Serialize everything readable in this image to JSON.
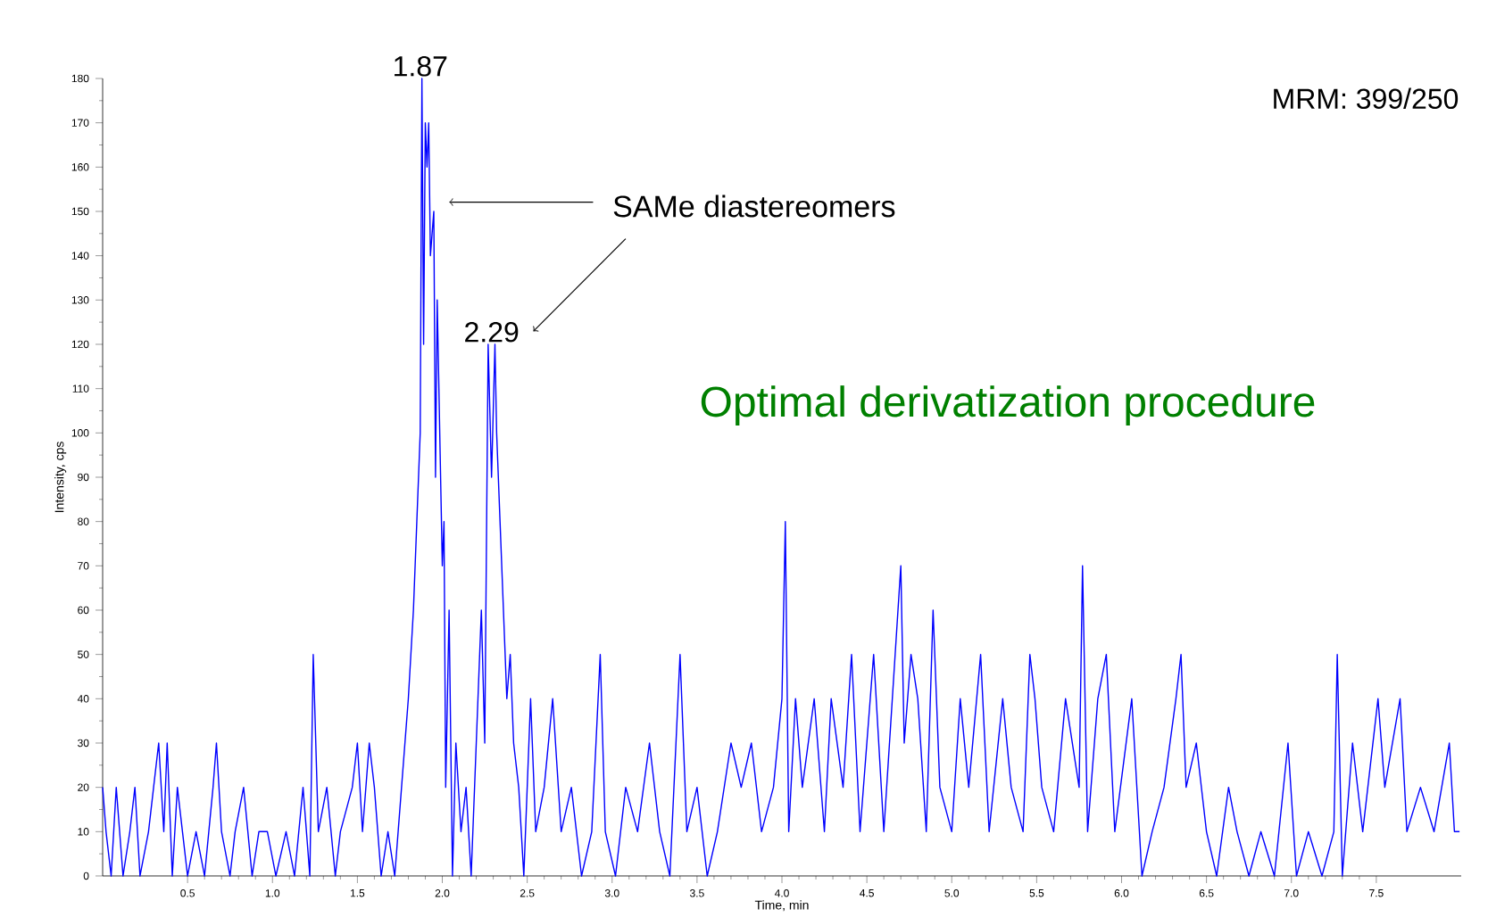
{
  "chart_data": {
    "type": "line",
    "xlabel": "Time, min",
    "ylabel": "Intensity, cps",
    "annotations": [
      {
        "text": "1.87",
        "x": 1.87,
        "y": 180
      },
      {
        "text": "2.29",
        "x": 2.29,
        "y": 120
      },
      "SAMe diastereomers",
      "MRM: 399/250",
      "Optimal derivatization procedure"
    ],
    "xlim": [
      0,
      8.0
    ],
    "ylim": [
      0,
      180
    ],
    "xticks": [
      0.5,
      {
        "value": 1,
        "label": "1.0"
      },
      1.5,
      {
        "value": 2,
        "label": "2.0"
      },
      2.5,
      {
        "value": 3,
        "label": "3.0"
      },
      3.5,
      {
        "value": 4,
        "label": "4.0"
      },
      4.5,
      {
        "value": 5,
        "label": "5.0"
      },
      5.5,
      {
        "value": 6,
        "label": "6.0"
      },
      6.5,
      {
        "value": 7,
        "label": "7.0"
      },
      7.5
    ],
    "yticks": [
      0,
      10,
      20,
      30,
      40,
      50,
      60,
      70,
      80,
      90,
      100,
      110,
      120,
      130,
      140,
      150,
      160,
      170,
      180
    ],
    "grid": false,
    "marker": "none",
    "line_style": "solid",
    "series": [
      {
        "color": "#0000ff",
        "x": [
          0.0,
          0.02,
          0.05,
          0.08,
          0.12,
          0.16,
          0.19,
          0.22,
          0.27,
          0.3,
          0.33,
          0.36,
          0.38,
          0.41,
          0.44,
          0.47,
          0.5,
          0.55,
          0.6,
          0.65,
          0.67,
          0.7,
          0.75,
          0.78,
          0.83,
          0.88,
          0.92,
          0.97,
          1.02,
          1.08,
          1.13,
          1.18,
          1.22,
          1.24,
          1.27,
          1.32,
          1.37,
          1.4,
          1.47,
          1.5,
          1.53,
          1.57,
          1.6,
          1.64,
          1.68,
          1.72,
          1.76,
          1.8,
          1.83,
          1.85,
          1.87,
          1.88,
          1.89,
          1.9,
          1.91,
          1.92,
          1.93,
          1.95,
          1.96,
          1.97,
          1.98,
          2.0,
          2.01,
          2.02,
          2.04,
          2.06,
          2.08,
          2.11,
          2.14,
          2.17,
          2.2,
          2.23,
          2.25,
          2.27,
          2.29,
          2.31,
          2.32,
          2.34,
          2.36,
          2.38,
          2.4,
          2.42,
          2.45,
          2.48,
          2.52,
          2.55,
          2.6,
          2.65,
          2.7,
          2.76,
          2.82,
          2.88,
          2.93,
          2.96,
          3.02,
          3.08,
          3.15,
          3.22,
          3.28,
          3.34,
          3.4,
          3.44,
          3.5,
          3.56,
          3.62,
          3.7,
          3.76,
          3.82,
          3.88,
          3.95,
          4.0,
          4.02,
          4.04,
          4.08,
          4.12,
          4.19,
          4.25,
          4.29,
          4.36,
          4.41,
          4.46,
          4.54,
          4.6,
          4.65,
          4.7,
          4.72,
          4.76,
          4.8,
          4.85,
          4.89,
          4.93,
          5.0,
          5.05,
          5.1,
          5.17,
          5.22,
          5.3,
          5.35,
          5.42,
          5.46,
          5.49,
          5.53,
          5.6,
          5.67,
          5.75,
          5.77,
          5.8,
          5.86,
          5.91,
          5.96,
          6.06,
          6.12,
          6.18,
          6.25,
          6.32,
          6.35,
          6.38,
          6.44,
          6.5,
          6.56,
          6.63,
          6.68,
          6.75,
          6.82,
          6.9,
          6.98,
          7.03,
          7.1,
          7.18,
          7.25,
          7.27,
          7.3,
          7.36,
          7.42,
          7.51,
          7.55,
          7.64,
          7.68,
          7.76,
          7.84,
          7.93,
          7.96,
          7.99
        ],
        "values": [
          20,
          10,
          0,
          20,
          0,
          10,
          20,
          0,
          10,
          20,
          30,
          10,
          30,
          0,
          20,
          10,
          0,
          10,
          0,
          20,
          30,
          10,
          0,
          10,
          20,
          0,
          10,
          10,
          0,
          10,
          0,
          20,
          0,
          50,
          10,
          20,
          0,
          10,
          20,
          30,
          10,
          30,
          20,
          0,
          10,
          0,
          20,
          40,
          60,
          80,
          100,
          180,
          120,
          170,
          160,
          170,
          140,
          150,
          90,
          130,
          110,
          70,
          80,
          20,
          60,
          0,
          30,
          10,
          20,
          0,
          30,
          60,
          30,
          120,
          90,
          120,
          100,
          80,
          60,
          40,
          50,
          30,
          20,
          0,
          40,
          10,
          20,
          40,
          10,
          20,
          0,
          10,
          50,
          10,
          0,
          20,
          10,
          30,
          10,
          0,
          50,
          10,
          20,
          0,
          10,
          30,
          20,
          30,
          10,
          20,
          40,
          80,
          10,
          40,
          20,
          40,
          10,
          40,
          20,
          50,
          10,
          50,
          10,
          40,
          70,
          30,
          50,
          40,
          10,
          60,
          20,
          10,
          40,
          20,
          50,
          10,
          40,
          20,
          10,
          50,
          40,
          20,
          10,
          40,
          20,
          70,
          10,
          40,
          50,
          10,
          40,
          0,
          10,
          20,
          40,
          50,
          20,
          30,
          10,
          0,
          20,
          10,
          0,
          10,
          0,
          30,
          0,
          10,
          0,
          10,
          50,
          0,
          30,
          10,
          40,
          20,
          40,
          10,
          20,
          10,
          30,
          10,
          10
        ]
      }
    ]
  }
}
